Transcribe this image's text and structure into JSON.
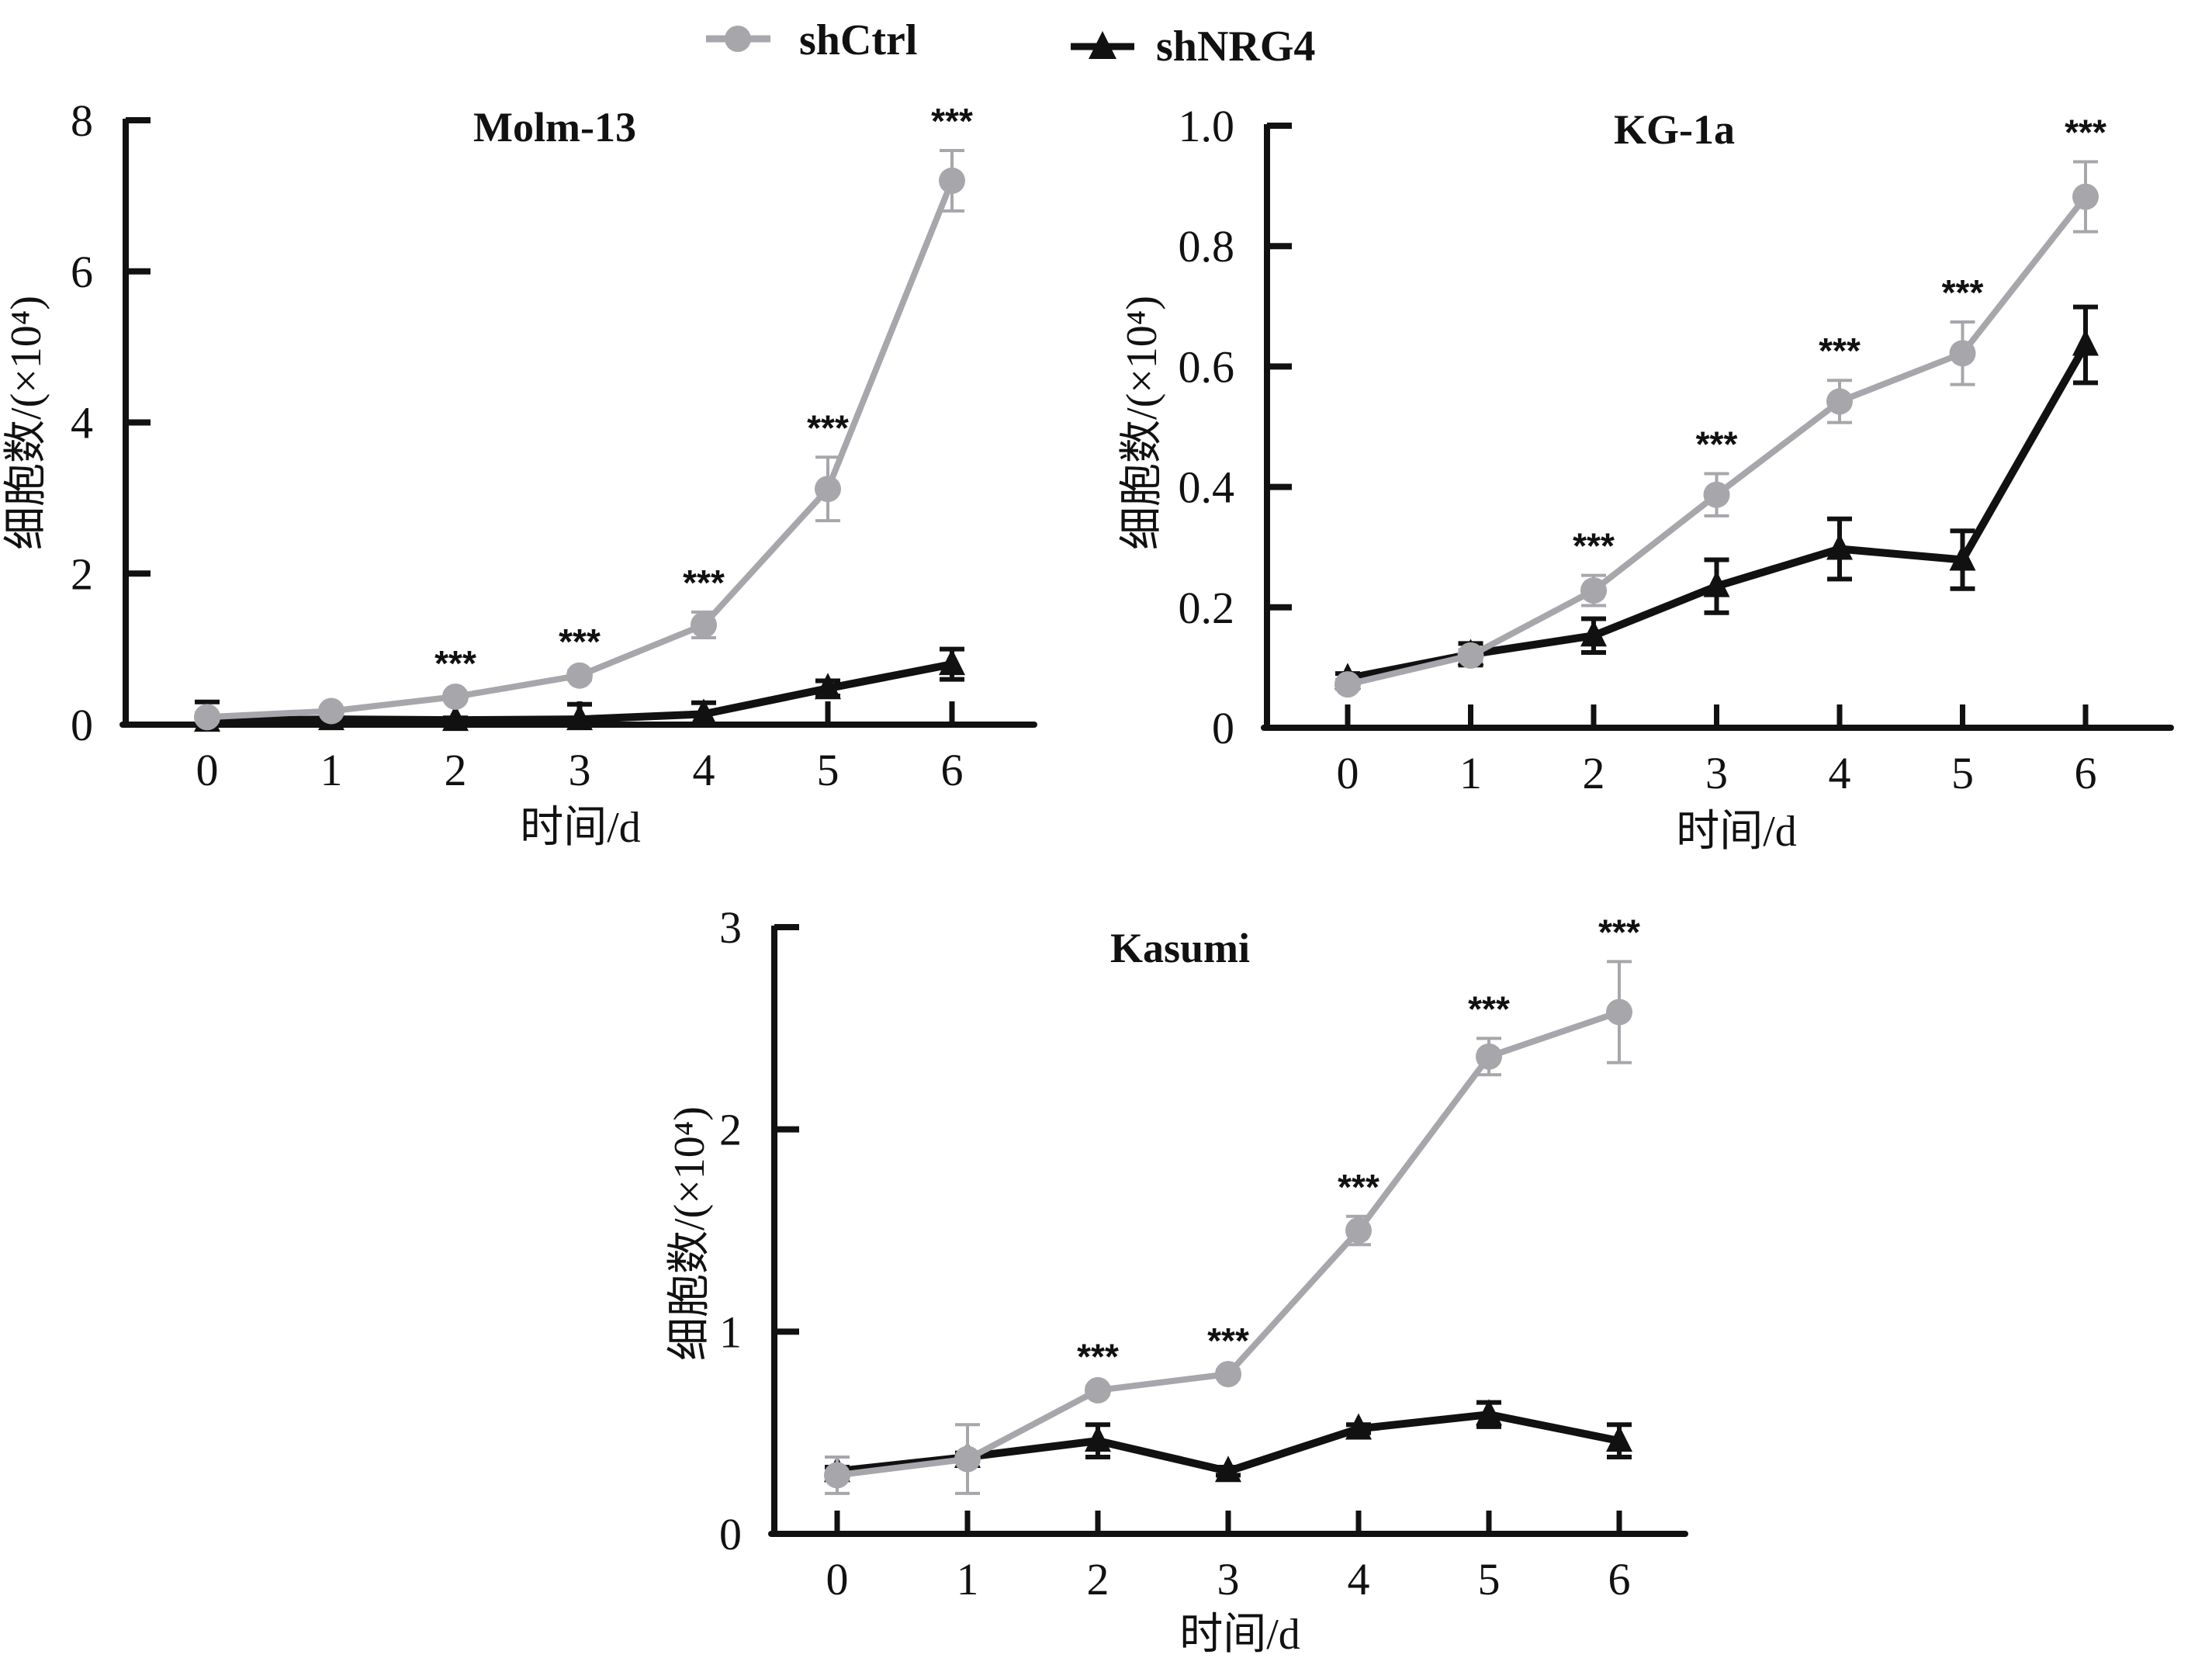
{
  "legend": {
    "items": [
      {
        "name": "shCtrl",
        "color": "#a7a6ab",
        "marker": "circle"
      },
      {
        "name": "shNRG4",
        "color": "#111111",
        "marker": "triangle"
      }
    ]
  },
  "chart_data": [
    {
      "type": "line",
      "title": "Molm-13",
      "xlabel": "时间/d",
      "ylabel": "细胞数/(×10⁴)",
      "x": [
        0,
        1,
        2,
        3,
        4,
        5,
        6
      ],
      "xticks": [
        "0",
        "1",
        "2",
        "3",
        "4",
        "5",
        "6"
      ],
      "yticks": [
        "0",
        "2",
        "4",
        "6",
        "8"
      ],
      "ylim": [
        0,
        8
      ],
      "grid": false,
      "legend_position": "top-center",
      "series": [
        {
          "name": "shCtrl",
          "values": [
            0.1,
            0.18,
            0.37,
            0.65,
            1.32,
            3.12,
            7.2
          ],
          "errors": [
            0.05,
            0.04,
            0.05,
            0.06,
            0.17,
            0.42,
            0.4
          ]
        },
        {
          "name": "shNRG4",
          "values": [
            0.05,
            0.07,
            0.06,
            0.07,
            0.14,
            0.48,
            0.8
          ],
          "errors": [
            0.25,
            0.03,
            0.03,
            0.2,
            0.15,
            0.1,
            0.2
          ]
        }
      ],
      "annotations": [
        {
          "x": 2,
          "text": "***"
        },
        {
          "x": 3,
          "text": "***"
        },
        {
          "x": 4,
          "text": "***"
        },
        {
          "x": 5,
          "text": "***"
        },
        {
          "x": 6,
          "text": "***"
        }
      ]
    },
    {
      "type": "line",
      "title": "KG-1a",
      "xlabel": "时间/d",
      "ylabel": "细胞数/(×10⁴)",
      "x": [
        0,
        1,
        2,
        3,
        4,
        5,
        6
      ],
      "xticks": [
        "0",
        "1",
        "2",
        "3",
        "4",
        "5",
        "6"
      ],
      "yticks": [
        "0",
        "0.2",
        "0.4",
        "0.6",
        "0.8",
        "1.0"
      ],
      "ylim": [
        0,
        1.0
      ],
      "grid": false,
      "legend_position": "top-center",
      "series": [
        {
          "name": "shCtrl",
          "values": [
            0.072,
            0.12,
            0.228,
            0.387,
            0.542,
            0.622,
            0.882
          ],
          "errors": [
            0.008,
            0.01,
            0.025,
            0.035,
            0.035,
            0.052,
            0.058
          ]
        },
        {
          "name": "shNRG4",
          "values": [
            0.082,
            0.122,
            0.153,
            0.235,
            0.297,
            0.279,
            0.636
          ],
          "errors": [
            0.008,
            0.018,
            0.028,
            0.044,
            0.05,
            0.048,
            0.063
          ]
        }
      ],
      "annotations": [
        {
          "x": 2,
          "text": "***"
        },
        {
          "x": 3,
          "text": "***"
        },
        {
          "x": 4,
          "text": "***"
        },
        {
          "x": 5,
          "text": "***"
        },
        {
          "x": 6,
          "text": "***"
        }
      ]
    },
    {
      "type": "line",
      "title": "Kasumi",
      "xlabel": "时间/d",
      "ylabel": "细胞数/(×10⁴)",
      "x": [
        0,
        1,
        2,
        3,
        4,
        5,
        6
      ],
      "xticks": [
        "0",
        "1",
        "2",
        "3",
        "4",
        "5",
        "6"
      ],
      "yticks": [
        "0",
        "1",
        "2",
        "3"
      ],
      "ylim": [
        0,
        3
      ],
      "grid": false,
      "legend_position": "top-center",
      "series": [
        {
          "name": "shCtrl",
          "values": [
            0.29,
            0.37,
            0.71,
            0.79,
            1.5,
            2.36,
            2.58
          ],
          "errors": [
            0.09,
            0.17,
            0.02,
            0.02,
            0.07,
            0.09,
            0.25
          ]
        },
        {
          "name": "shNRG4",
          "values": [
            0.31,
            0.38,
            0.46,
            0.31,
            0.52,
            0.59,
            0.46
          ],
          "errors": [
            0.02,
            0.02,
            0.08,
            0.02,
            0.02,
            0.06,
            0.08
          ]
        }
      ],
      "annotations": [
        {
          "x": 2,
          "text": "***"
        },
        {
          "x": 3,
          "text": "***"
        },
        {
          "x": 4,
          "text": "***"
        },
        {
          "x": 5,
          "text": "***"
        },
        {
          "x": 6,
          "text": "***"
        }
      ]
    }
  ]
}
